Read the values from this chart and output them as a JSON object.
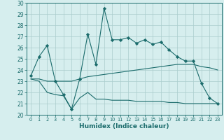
{
  "xlabel": "Humidex (Indice chaleur)",
  "xlim": [
    -0.5,
    23.5
  ],
  "ylim": [
    20,
    30
  ],
  "yticks": [
    20,
    21,
    22,
    23,
    24,
    25,
    26,
    27,
    28,
    29,
    30
  ],
  "xticks": [
    0,
    1,
    2,
    3,
    4,
    5,
    6,
    7,
    8,
    9,
    10,
    11,
    12,
    13,
    14,
    15,
    16,
    17,
    18,
    19,
    20,
    21,
    22,
    23
  ],
  "bg_color": "#d6eeee",
  "line_color": "#1a6b6b",
  "grid_color": "#aacccc",
  "series1_x": [
    0,
    1,
    2,
    3,
    4,
    5,
    6,
    7,
    8,
    9,
    10,
    11,
    12,
    13,
    14,
    15,
    16,
    17,
    18,
    19,
    20,
    21,
    22,
    23
  ],
  "series1_y": [
    23.5,
    25.2,
    26.2,
    23.0,
    21.8,
    20.5,
    23.2,
    27.2,
    24.5,
    29.5,
    26.7,
    26.7,
    26.9,
    26.4,
    26.7,
    26.3,
    26.5,
    25.8,
    25.2,
    24.8,
    24.8,
    22.8,
    21.5,
    21.0
  ],
  "series2_x": [
    0,
    1,
    2,
    3,
    4,
    5,
    6,
    7,
    8,
    9,
    10,
    11,
    12,
    13,
    14,
    15,
    16,
    17,
    18,
    19,
    20,
    21,
    22,
    23
  ],
  "series2_y": [
    23.2,
    23.2,
    23.0,
    23.0,
    23.0,
    23.0,
    23.2,
    23.4,
    23.5,
    23.6,
    23.7,
    23.8,
    23.9,
    24.0,
    24.1,
    24.2,
    24.3,
    24.4,
    24.5,
    24.5,
    24.5,
    24.3,
    24.2,
    24.0
  ],
  "series3_x": [
    0,
    1,
    2,
    3,
    4,
    5,
    6,
    7,
    8,
    9,
    10,
    11,
    12,
    13,
    14,
    15,
    16,
    17,
    18,
    19,
    20,
    21,
    22,
    23
  ],
  "series3_y": [
    23.2,
    23.0,
    22.0,
    21.8,
    21.7,
    20.5,
    21.5,
    22.0,
    21.4,
    21.4,
    21.3,
    21.3,
    21.3,
    21.2,
    21.2,
    21.2,
    21.2,
    21.1,
    21.1,
    21.0,
    21.0,
    21.0,
    21.0,
    21.0
  ],
  "label_fontsize": 5.5,
  "xlabel_fontsize": 6.5
}
